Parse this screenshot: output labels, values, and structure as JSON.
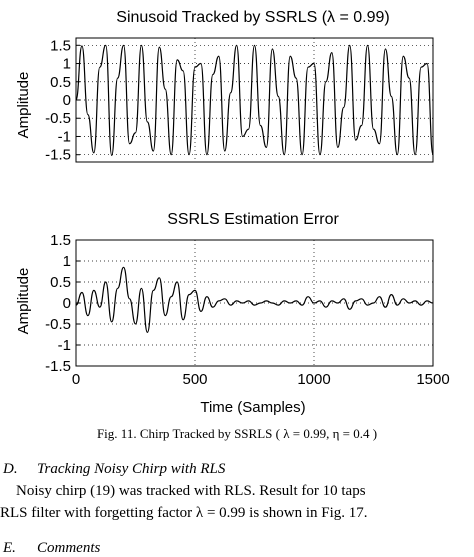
{
  "chart_data": [
    {
      "type": "line",
      "title": "Sinusoid Tracked by SSRLS (λ = 0.99)",
      "xlabel": "",
      "ylabel": "Amplitude",
      "ylim": [
        -1.7,
        1.7
      ],
      "xlim": [
        0,
        1500
      ],
      "yticks": [
        "1.5",
        "1",
        "0.5",
        "0",
        "-0.5",
        "-1",
        "-1.5"
      ],
      "xticks": [],
      "grid": true,
      "series": [
        {
          "x": [
            0,
            25,
            50,
            75,
            100,
            125,
            150,
            175,
            200,
            225,
            250,
            275,
            300,
            325,
            350,
            375,
            400,
            425,
            450,
            475,
            500,
            525,
            550,
            575,
            600,
            625,
            650,
            675,
            700,
            725,
            750,
            775,
            800,
            825,
            850,
            875,
            900,
            925,
            950,
            975,
            1000,
            1025,
            1050,
            1075,
            1100,
            1125,
            1150,
            1175,
            1200,
            1225,
            1250,
            1275,
            1300,
            1325,
            1350,
            1375,
            1400,
            1425,
            1450,
            1475,
            1500
          ],
          "y": [
            0,
            1.48,
            -0.4,
            -1.45,
            0.9,
            1.5,
            -1.52,
            0.6,
            1.5,
            -1.2,
            -0.9,
            1.5,
            -0.6,
            -1.4,
            1.45,
            0.3,
            -1.5,
            1.1,
            0.8,
            -1.5,
            0.9,
            1.0,
            -1.5,
            0.7,
            1.2,
            -1.4,
            0.2,
            1.5,
            -1.0,
            -0.8,
            1.5,
            -0.7,
            -1.3,
            1.4,
            0.1,
            -1.5,
            1.2,
            0.6,
            -1.5,
            0.9,
            1.0,
            -1.5,
            0.5,
            1.3,
            -1.3,
            -0.2,
            1.5,
            -1.1,
            -0.7,
            1.5,
            -0.8,
            -1.2,
            1.4,
            0.1,
            -1.5,
            1.2,
            0.6,
            -1.5,
            0.9,
            1.0,
            -1.5
          ]
        }
      ]
    },
    {
      "type": "line",
      "title": "SSRLS Estimation Error",
      "xlabel": "Time (Samples)",
      "ylabel": "Amplitude",
      "ylim": [
        -1.5,
        1.5
      ],
      "xlim": [
        0,
        1500
      ],
      "yticks": [
        "1.5",
        "1",
        "0.5",
        "0",
        "-0.5",
        "-1",
        "-1.5"
      ],
      "xticks": [
        "0",
        "500",
        "1000",
        "1500"
      ],
      "grid": true,
      "series": [
        {
          "x": [
            0,
            25,
            50,
            75,
            100,
            125,
            150,
            175,
            200,
            225,
            250,
            275,
            300,
            325,
            350,
            375,
            400,
            425,
            450,
            475,
            500,
            525,
            550,
            575,
            600,
            625,
            650,
            675,
            700,
            725,
            750,
            775,
            800,
            825,
            850,
            875,
            900,
            925,
            950,
            975,
            1000,
            1025,
            1050,
            1075,
            1100,
            1125,
            1150,
            1175,
            1200,
            1225,
            1250,
            1275,
            1300,
            1325,
            1350,
            1375,
            1400,
            1425,
            1450,
            1475,
            1500
          ],
          "y": [
            -0.05,
            0.25,
            -0.3,
            0.3,
            -0.1,
            0.5,
            -0.45,
            0.35,
            0.85,
            0.1,
            -0.5,
            0.35,
            -0.7,
            0.3,
            0.6,
            -0.3,
            0.15,
            0.5,
            -0.4,
            0.2,
            0.3,
            -0.2,
            0.15,
            -0.1,
            0.05,
            0.1,
            -0.05,
            0.05,
            0.0,
            0.05,
            -0.05,
            0.0,
            0.05,
            0.0,
            -0.05,
            0.05,
            0.0,
            0.05,
            -0.05,
            0.15,
            0.0,
            0.05,
            -0.1,
            0.05,
            0.0,
            0.1,
            -0.15,
            0.05,
            0.1,
            -0.05,
            0.0,
            0.15,
            -0.1,
            0.2,
            -0.05,
            0.1,
            0.0,
            0.05,
            -0.05,
            0.05,
            0.0
          ]
        }
      ]
    }
  ],
  "caption": {
    "text": "Fig. 11.  Chirp Tracked by SSRLS ( λ = 0.99, η = 0.4 )"
  },
  "section": {
    "number": "D.",
    "title": "Tracking Noisy Chirp with RLS"
  },
  "paragraph": {
    "line1": "Noisy chirp (19) was tracked with RLS. Result for 10 taps",
    "line2": "RLS filter with forgetting factor  λ = 0.99 is shown in Fig. 17."
  },
  "next_section": {
    "number": "E.",
    "title": "Comments"
  }
}
